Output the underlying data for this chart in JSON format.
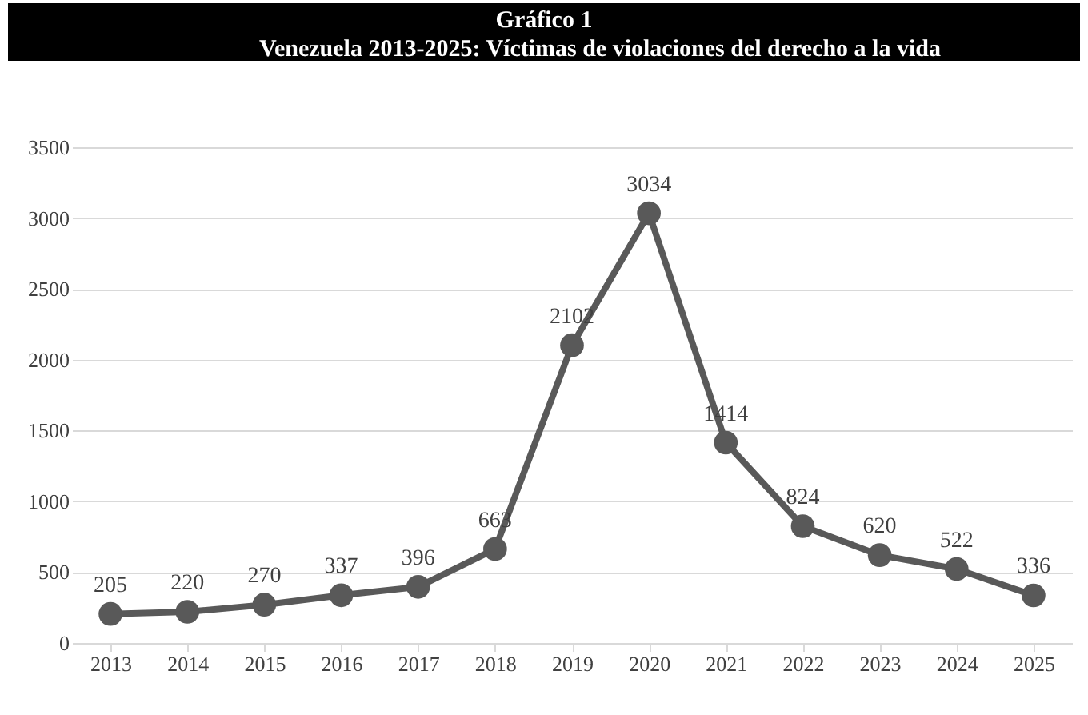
{
  "chart_data": {
    "type": "line",
    "title": "Gráfico 1",
    "subtitle": "Venezuela 2013-2025: Víctimas de violaciones del derecho a la vida",
    "categories": [
      "2013",
      "2014",
      "2015",
      "2016",
      "2017",
      "2018",
      "2019",
      "2020",
      "2021",
      "2022",
      "2023",
      "2024",
      "2025"
    ],
    "values": [
      205,
      220,
      270,
      337,
      396,
      663,
      2102,
      3034,
      1414,
      824,
      620,
      522,
      336
    ],
    "color": "#595959",
    "marker": "circle",
    "data_labels": true,
    "ylim": [
      0,
      3500
    ],
    "yticks": [
      0,
      500,
      1000,
      1500,
      2000,
      2500,
      3000,
      3500
    ],
    "grid": "y"
  }
}
